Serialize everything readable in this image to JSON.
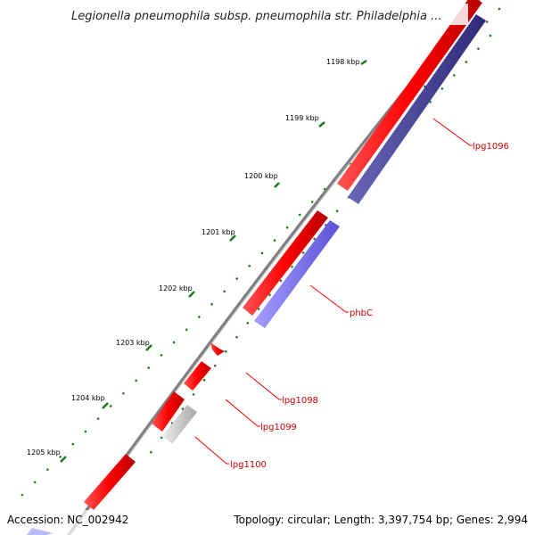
{
  "map": {
    "title": "Legionella pneumophila subsp. pneumophila str. Philadelphia ...",
    "accession": "Accession: NC_002942",
    "summary": "Topology: circular; Length: 3,397,754 bp; Genes: 2,994"
  },
  "ticks": [
    "1198 kbp",
    "1199 kbp",
    "1200 kbp",
    "1201 kbp",
    "1202 kbp",
    "1203 kbp",
    "1204 kbp",
    "1205 kbp"
  ],
  "genes": [
    "lpg1096",
    "phbC",
    "lpg1098",
    "lpg1099",
    "lpg1100"
  ],
  "colors": {
    "forward_cds": "#ff0000",
    "reverse_cds_dark": "#3d3a8c",
    "reverse_cds_light": "#7b72e6",
    "pseudo_gene": "#c8c8c8",
    "backbone": "#808080",
    "tick_marks": "#1a7a1a",
    "gene_label": "#cc0000"
  }
}
